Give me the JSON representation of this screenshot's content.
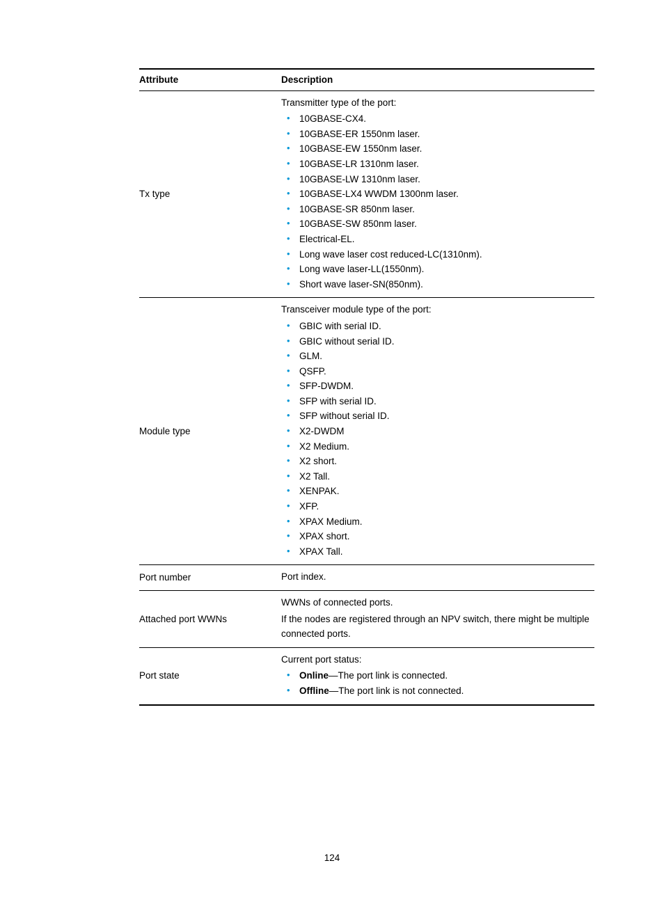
{
  "page_number": "124",
  "table": {
    "headers": {
      "attribute": "Attribute",
      "description": "Description"
    },
    "bullet_color": "#0096d6",
    "rows": [
      {
        "attribute": "Tx type",
        "intro": "Transmitter type of the port:",
        "items": [
          "10GBASE-CX4.",
          "10GBASE-ER 1550nm laser.",
          "10GBASE-EW 1550nm laser.",
          "10GBASE-LR 1310nm laser.",
          "10GBASE-LW 1310nm laser.",
          "10GBASE-LX4 WWDM 1300nm laser.",
          "10GBASE-SR 850nm laser.",
          "10GBASE-SW 850nm laser.",
          "Electrical-EL.",
          "Long wave laser cost reduced-LC(1310nm).",
          "Long wave laser-LL(1550nm).",
          "Short wave laser-SN(850nm)."
        ]
      },
      {
        "attribute": "Module type",
        "intro": "Transceiver module type of the port:",
        "items": [
          "GBIC with serial ID.",
          "GBIC without serial ID.",
          "GLM.",
          "QSFP.",
          "SFP-DWDM.",
          "SFP with serial ID.",
          "SFP without serial ID.",
          "X2-DWDM",
          "X2 Medium.",
          "X2 short.",
          "X2 Tall.",
          "XENPAK.",
          "XFP.",
          "XPAX Medium.",
          "XPAX short.",
          "XPAX Tall."
        ]
      },
      {
        "attribute": "Port number",
        "plain": "Port index."
      },
      {
        "attribute": "Attached port WWNs",
        "paragraphs": [
          "WWNs of connected ports.",
          "If the nodes are registered through an NPV switch, there might be multiple connected ports."
        ]
      },
      {
        "attribute": "Port state",
        "intro": "Current port status:",
        "bold_items": [
          {
            "bold": "Online",
            "rest": "—The port link is connected."
          },
          {
            "bold": "Offline",
            "rest": "—The port link is not connected."
          }
        ]
      }
    ]
  }
}
